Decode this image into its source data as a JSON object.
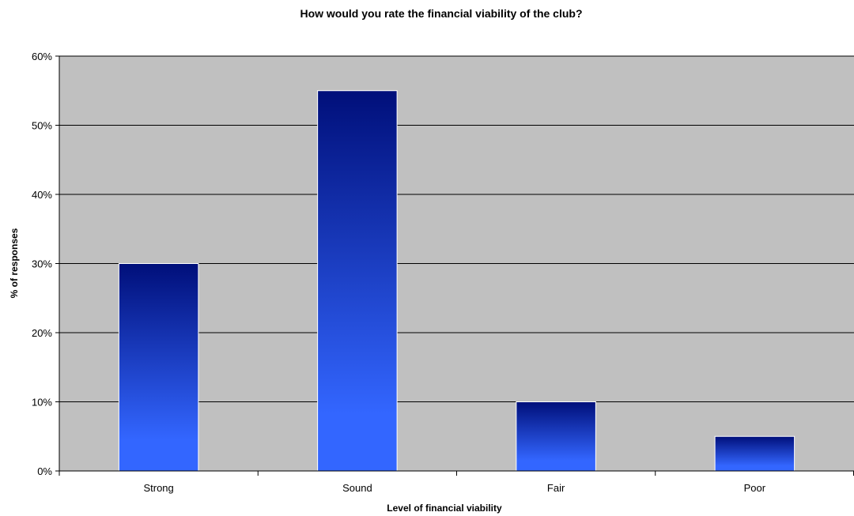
{
  "chart_data": {
    "type": "bar",
    "title": "How would you rate the financial viability of the club?",
    "xlabel": "Level of financial viability",
    "ylabel": "% of responses",
    "categories": [
      "Strong",
      "Sound",
      "Fair",
      "Poor"
    ],
    "values": [
      30,
      55,
      10,
      5
    ],
    "ylim": [
      0,
      60
    ],
    "yticks": [
      0,
      10,
      20,
      30,
      40,
      50,
      60
    ],
    "ytick_labels": [
      "0%",
      "10%",
      "20%",
      "30%",
      "40%",
      "50%",
      "60%"
    ],
    "grid": true,
    "legend": "none",
    "colors": {
      "plot_background": "#c0c0c0",
      "bar_gradient_top": "#000f7a",
      "bar_gradient_bottom": "#3366ff",
      "gridline": "#000000",
      "bar_border": "#ffffff"
    }
  }
}
